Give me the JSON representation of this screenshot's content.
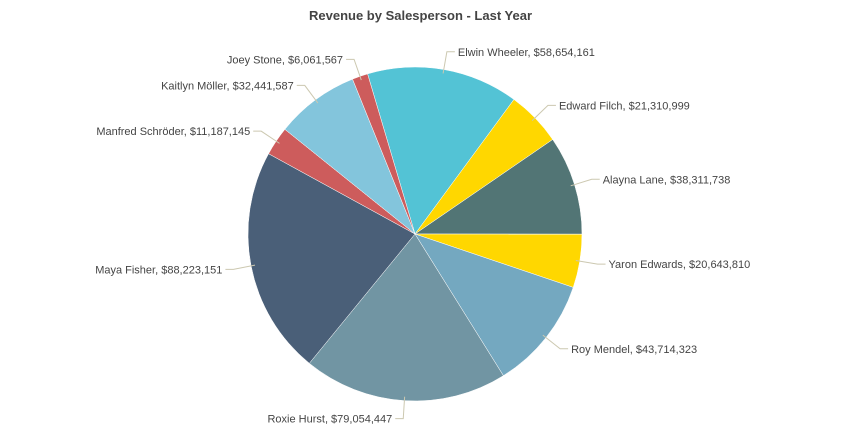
{
  "chart_data": {
    "type": "pie",
    "title": "Revenue by Salesperson - Last Year",
    "start_angle_deg": -16.5,
    "direction": "clockwise",
    "slices": [
      {
        "name": "Elwin Wheeler",
        "value": 58654161,
        "label": "Elwin Wheeler, $58,654,161",
        "color": "#53c3d5"
      },
      {
        "name": "Edward Filch",
        "value": 21310999,
        "label": "Edward Filch, $21,310,999",
        "color": "#ffd700"
      },
      {
        "name": "Alayna Lane",
        "value": 38311738,
        "label": "Alayna Lane, $38,311,738",
        "color": "#527575"
      },
      {
        "name": "Yaron Edwards",
        "value": 20643810,
        "label": "Yaron Edwards, $20,643,810",
        "color": "#ffd700"
      },
      {
        "name": "Roy Mendel",
        "value": 43714323,
        "label": "Roy Mendel, $43,714,323",
        "color": "#74a8c0"
      },
      {
        "name": "Roxie Hurst",
        "value": 79054447,
        "label": "Roxie Hurst, $79,054,447",
        "color": "#7195a3"
      },
      {
        "name": "Maya Fisher",
        "value": 88223151,
        "label": "Maya Fisher, $88,223,151",
        "color": "#4a5f78"
      },
      {
        "name": "Manfred Schröder",
        "value": 11187145,
        "label": "Manfred Schröder, $11,187,145",
        "color": "#cd5c5c"
      },
      {
        "name": "Kaitlyn Möller",
        "value": 32441587,
        "label": "Kaitlyn Möller, $32,441,587",
        "color": "#83c5dc"
      },
      {
        "name": "Joey Stone",
        "value": 6061567,
        "label": "Joey Stone, $6,061,567",
        "color": "#cd5c5c"
      }
    ]
  }
}
